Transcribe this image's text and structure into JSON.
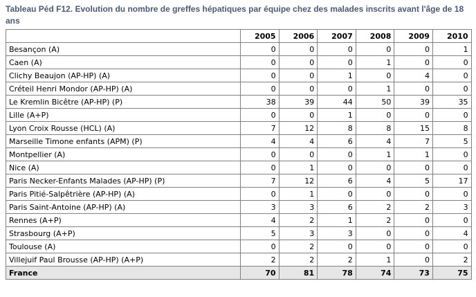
{
  "title": "Tableau Péd F12. Evolution du nombre de greffes hépatiques par équipe chez des malades inscrits avant l'âge de 18 ans",
  "table": {
    "years": [
      "2005",
      "2006",
      "2007",
      "2008",
      "2009",
      "2010"
    ],
    "rows": [
      {
        "name": "Besançon (A)",
        "values": [
          "0",
          "0",
          "0",
          "0",
          "0",
          "1"
        ]
      },
      {
        "name": "Caen (A)",
        "values": [
          "0",
          "0",
          "0",
          "1",
          "0",
          "0"
        ]
      },
      {
        "name": "Clichy Beaujon (AP-HP) (A)",
        "values": [
          "0",
          "0",
          "1",
          "0",
          "4",
          "0"
        ]
      },
      {
        "name": "Créteil Henri Mondor (AP-HP) (A)",
        "values": [
          "0",
          "0",
          "0",
          "1",
          "0",
          "0"
        ]
      },
      {
        "name": "Le Kremlin Bicêtre (AP-HP) (P)",
        "values": [
          "38",
          "39",
          "44",
          "50",
          "39",
          "35"
        ]
      },
      {
        "name": "Lille (A+P)",
        "values": [
          "0",
          "0",
          "1",
          "0",
          "0",
          "0"
        ]
      },
      {
        "name": "Lyon Croix Rousse (HCL) (A)",
        "values": [
          "7",
          "12",
          "8",
          "8",
          "15",
          "8"
        ]
      },
      {
        "name": "Marseille Timone enfants (APM) (P)",
        "values": [
          "4",
          "4",
          "6",
          "4",
          "7",
          "5"
        ]
      },
      {
        "name": "Montpellier (A)",
        "values": [
          "0",
          "0",
          "0",
          "1",
          "1",
          "0"
        ]
      },
      {
        "name": "Nice (A)",
        "values": [
          "0",
          "1",
          "0",
          "0",
          "0",
          "0"
        ]
      },
      {
        "name": "Paris Necker-Enfants Malades (AP-HP) (P)",
        "values": [
          "7",
          "12",
          "6",
          "4",
          "5",
          "17"
        ]
      },
      {
        "name": "Paris Pitié-Salpêtrière (AP-HP) (A)",
        "values": [
          "0",
          "1",
          "0",
          "0",
          "0",
          "0"
        ]
      },
      {
        "name": "Paris Saint-Antoine (AP-HP) (A)",
        "values": [
          "3",
          "3",
          "6",
          "2",
          "2",
          "3"
        ]
      },
      {
        "name": "Rennes (A+P)",
        "values": [
          "4",
          "2",
          "1",
          "2",
          "0",
          "0"
        ]
      },
      {
        "name": "Strasbourg (A+P)",
        "values": [
          "5",
          "3",
          "3",
          "0",
          "0",
          "4"
        ]
      },
      {
        "name": "Toulouse (A)",
        "values": [
          "0",
          "2",
          "0",
          "0",
          "0",
          "0"
        ]
      },
      {
        "name": "Villejuif Paul Brousse (AP-HP) (A+P)",
        "values": [
          "2",
          "2",
          "2",
          "1",
          "0",
          "2"
        ]
      }
    ],
    "total": {
      "name": "France",
      "values": [
        "70",
        "81",
        "78",
        "74",
        "73",
        "75"
      ]
    }
  }
}
